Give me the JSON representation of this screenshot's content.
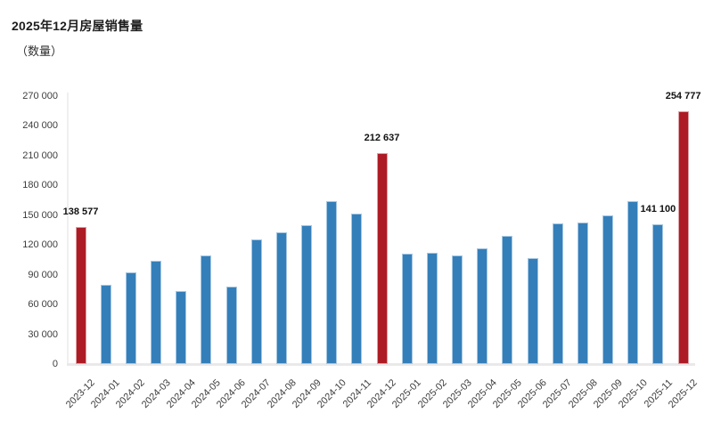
{
  "header": {
    "title": "2025年12月房屋销售量",
    "subtitle": "（数量）"
  },
  "colors": {
    "bar_default": "#347FBA",
    "bar_default_edge": "#A5C7E2",
    "bar_highlight": "#AD1B24",
    "bar_highlight_edge": "#DCA2A6",
    "axis_line": "#EFEFEF",
    "tick_text": "#3D3D3D",
    "title_text": "#1D1D1D",
    "background": "#FFFFFF"
  },
  "chart_data": {
    "type": "bar",
    "title": "2025年12月房屋销售量",
    "subtitle": "（数量）",
    "xlabel": "",
    "ylabel": "",
    "ylim": [
      0,
      270000
    ],
    "y_tick_interval": 30000,
    "grid": false,
    "legend": false,
    "categories": [
      "2023-12",
      "2024-01",
      "2024-02",
      "2024-03",
      "2024-04",
      "2024-05",
      "2024-06",
      "2024-07",
      "2024-08",
      "2024-09",
      "2024-10",
      "2024-11",
      "2024-12",
      "2025-01",
      "2025-02",
      "2025-03",
      "2025-04",
      "2025-05",
      "2025-06",
      "2025-07",
      "2025-08",
      "2025-09",
      "2025-10",
      "2025-11",
      "2025-12"
    ],
    "values": [
      138577,
      79800,
      92400,
      104000,
      73500,
      109400,
      78000,
      125500,
      132700,
      139900,
      164400,
      151800,
      212637,
      111200,
      112100,
      109400,
      116600,
      129100,
      106700,
      141700,
      142600,
      149700,
      164100,
      141100,
      254777
    ],
    "highlight_categories": [
      "2023-12",
      "2024-12",
      "2025-12"
    ],
    "annotations": [
      {
        "category": "2023-12",
        "label": "138 577"
      },
      {
        "category": "2024-12",
        "label": "212 637"
      },
      {
        "category": "2025-11",
        "label": "141 100"
      },
      {
        "category": "2025-12",
        "label": "254 777"
      }
    ],
    "y_ticks": {
      "values": [
        0,
        30000,
        60000,
        90000,
        120000,
        150000,
        180000,
        210000,
        240000,
        270000
      ],
      "labels": [
        "0",
        "30 000",
        "60 000",
        "90 000",
        "120 000",
        "150 000",
        "180 000",
        "210 000",
        "240 000",
        "270 000"
      ]
    }
  }
}
